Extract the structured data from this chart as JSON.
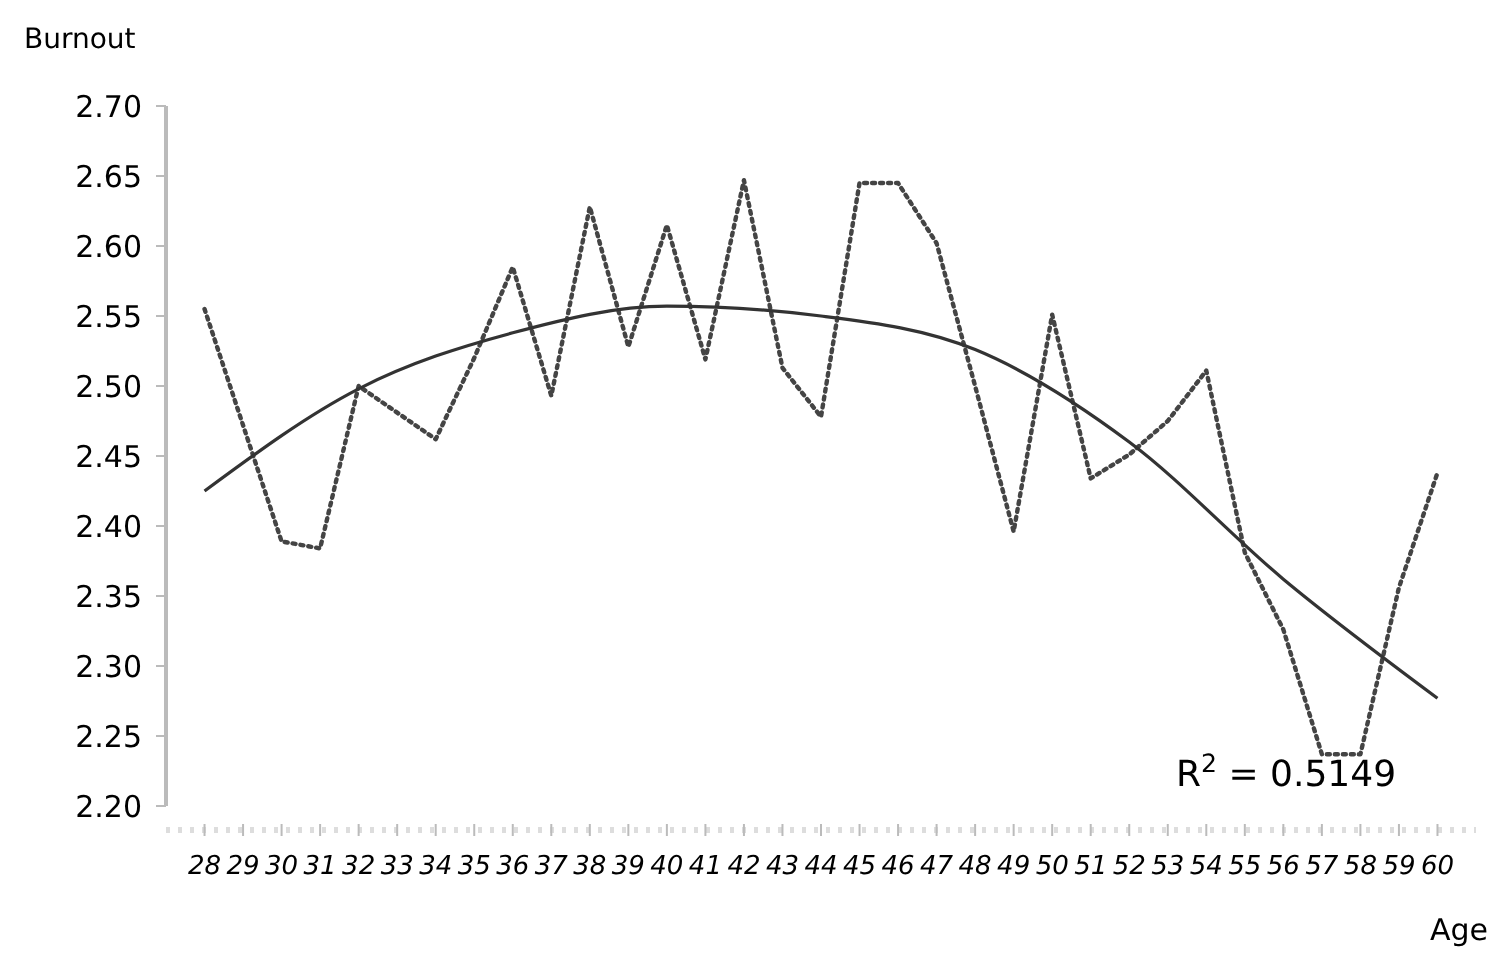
{
  "chart_data": {
    "type": "line",
    "xlabel": "Age",
    "ylabel": "Burnout",
    "x": [
      28,
      29,
      30,
      31,
      32,
      33,
      34,
      35,
      36,
      37,
      38,
      39,
      40,
      41,
      42,
      43,
      44,
      45,
      46,
      47,
      48,
      49,
      50,
      51,
      52,
      53,
      54,
      55,
      56,
      57,
      58,
      59,
      60
    ],
    "xlim": [
      27,
      61
    ],
    "xticks": [
      28,
      29,
      30,
      31,
      32,
      33,
      34,
      35,
      36,
      37,
      38,
      39,
      40,
      41,
      42,
      43,
      44,
      45,
      46,
      47,
      48,
      49,
      50,
      51,
      52,
      53,
      54,
      55,
      56,
      57,
      58,
      59,
      60
    ],
    "ylim": [
      2.2,
      2.7
    ],
    "yticks": [
      {
        "value": 2.2,
        "label": "2.20"
      },
      {
        "value": 2.25,
        "label": "2.25"
      },
      {
        "value": 2.3,
        "label": "2.30"
      },
      {
        "value": 2.35,
        "label": "2.35"
      },
      {
        "value": 2.4,
        "label": "2.40"
      },
      {
        "value": 2.45,
        "label": "2.45"
      },
      {
        "value": 2.5,
        "label": "2.50"
      },
      {
        "value": 2.55,
        "label": "2.55"
      },
      {
        "value": 2.6,
        "label": "2.60"
      },
      {
        "value": 2.65,
        "label": "2.65"
      },
      {
        "value": 2.7,
        "label": "2.70"
      }
    ],
    "series": [
      {
        "color": "#444444",
        "line_style": "dotted",
        "values": [
          2.555,
          2.472,
          2.389,
          2.384,
          2.5,
          2.481,
          2.462,
          2.52,
          2.585,
          2.493,
          2.628,
          2.528,
          2.615,
          2.519,
          2.647,
          2.513,
          2.478,
          2.645,
          2.645,
          2.602,
          2.5,
          2.396,
          2.551,
          2.434,
          2.451,
          2.475,
          2.511,
          2.381,
          2.326,
          2.237,
          2.237,
          2.356,
          2.438
        ]
      },
      {
        "color": "#333333",
        "line_style": "solid",
        "x": [
          28,
          32,
          36,
          40,
          44,
          48,
          52,
          56,
          60
        ],
        "values": [
          2.425,
          2.498,
          2.538,
          2.557,
          2.55,
          2.526,
          2.46,
          2.362,
          2.277
        ]
      }
    ],
    "annotations": [
      "R$^{2}$ = 0.5149"
    ],
    "grid": false,
    "marker": "none"
  }
}
